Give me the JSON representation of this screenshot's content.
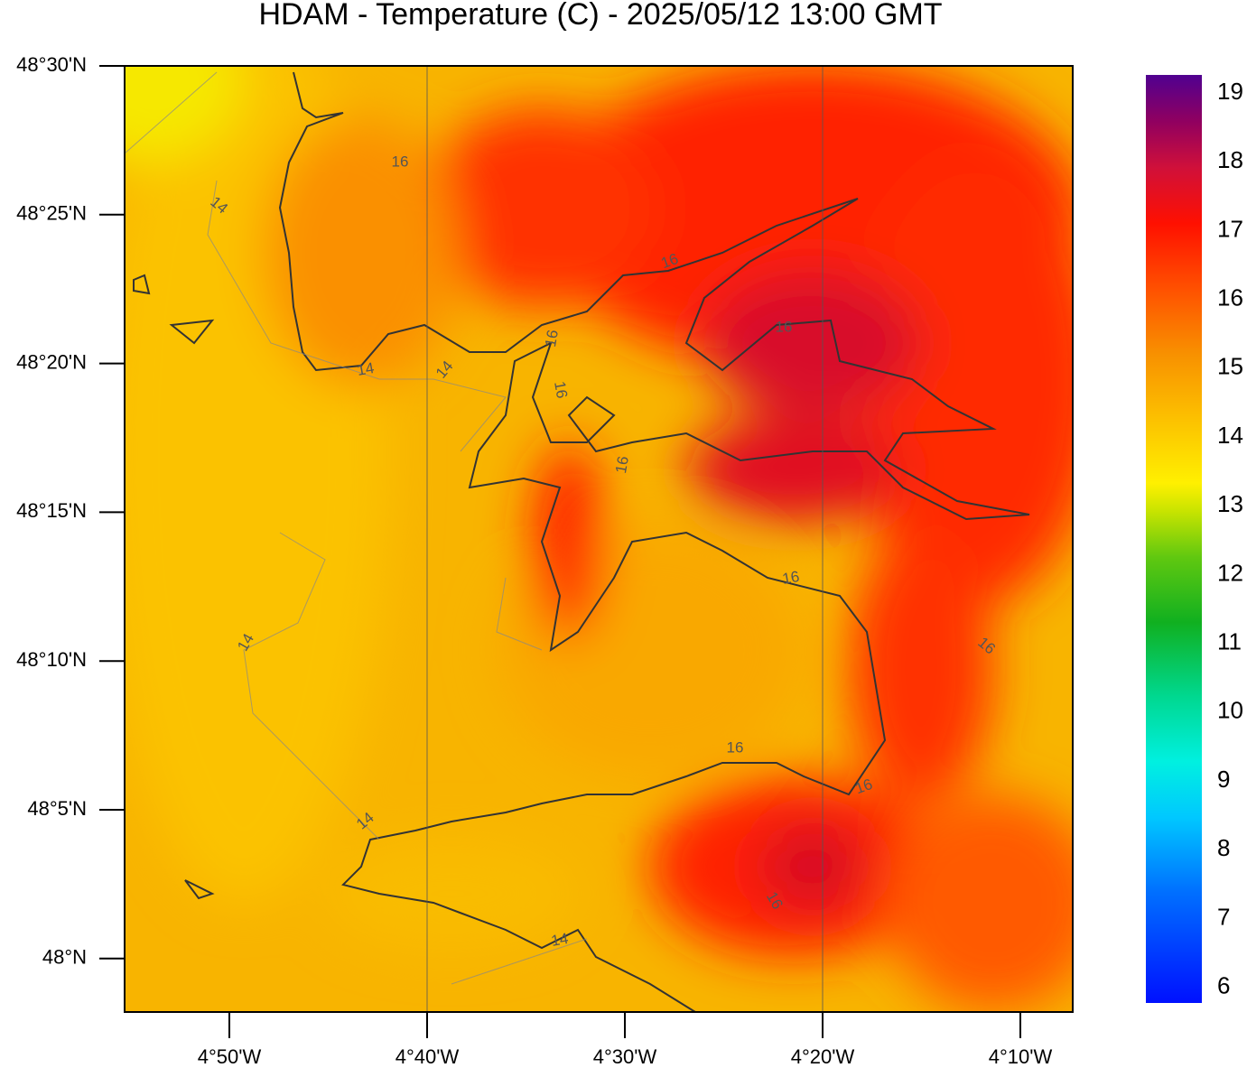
{
  "title": "HDAM - Temperature (C)  -  2025/05/12  13:00 GMT",
  "lat_labels": [
    "48°30'N",
    "48°25'N",
    "48°20'N",
    "48°15'N",
    "48°10'N",
    "48°5'N",
    "48°N"
  ],
  "lon_labels": [
    "4°50'W",
    "4°40'W",
    "4°30'W",
    "4°20'W",
    "4°10'W"
  ],
  "colorbar": {
    "labels": [
      "19",
      "18",
      "17",
      "16",
      "15",
      "14",
      "13",
      "12",
      "11",
      "10",
      "9",
      "8",
      "7",
      "6"
    ]
  },
  "contour_labels": [
    "16",
    "14",
    "16",
    "14",
    "14",
    "16",
    "16",
    "16",
    "16",
    "16",
    "16",
    "14",
    "16",
    "16",
    "14",
    "16",
    "14"
  ]
}
